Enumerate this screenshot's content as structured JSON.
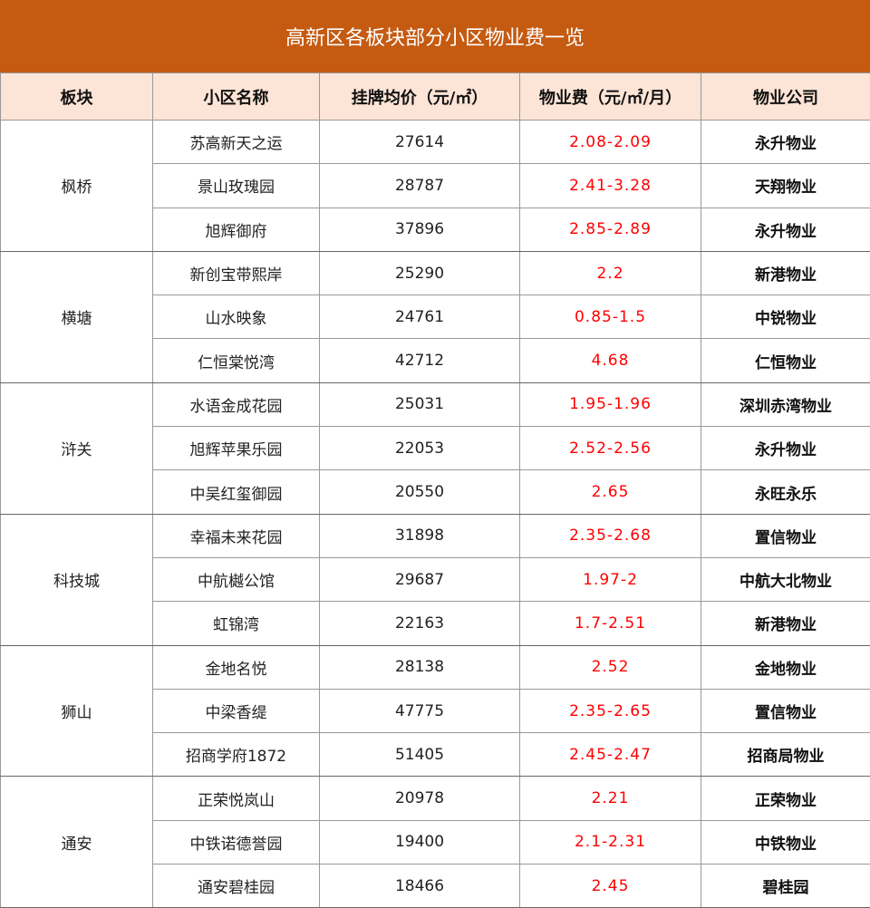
{
  "title": "高新区各板块部分小区物业费一览",
  "headers": [
    "板块",
    "小区名称",
    "挂牌均价（元/㎡）",
    "物业费（元/㎡/月）",
    "物业公司"
  ],
  "colors": {
    "title_bg": "#c55a11",
    "header_bg": "#fce4d6",
    "fee_text": "#ff0000"
  },
  "districts": [
    {
      "name": "枫桥",
      "rows": [
        {
          "name": "苏高新天之运",
          "price": "27614",
          "fee": "2.08-2.09",
          "company": "永升物业"
        },
        {
          "name": "景山玫瑰园",
          "price": "28787",
          "fee": "2.41-3.28",
          "company": "天翔物业"
        },
        {
          "name": "旭辉御府",
          "price": "37896",
          "fee": "2.85-2.89",
          "company": "永升物业"
        }
      ]
    },
    {
      "name": "横塘",
      "rows": [
        {
          "name": "新创宝带熙岸",
          "price": "25290",
          "fee": "2.2",
          "company": "新港物业"
        },
        {
          "name": "山水映象",
          "price": "24761",
          "fee": "0.85-1.5",
          "company": "中锐物业"
        },
        {
          "name": "仁恒棠悦湾",
          "price": "42712",
          "fee": "4.68",
          "company": "仁恒物业"
        }
      ]
    },
    {
      "name": "浒关",
      "rows": [
        {
          "name": "水语金成花园",
          "price": "25031",
          "fee": "1.95-1.96",
          "company": "深圳赤湾物业"
        },
        {
          "name": "旭辉苹果乐园",
          "price": "22053",
          "fee": "2.52-2.56",
          "company": "永升物业"
        },
        {
          "name": "中吴红玺御园",
          "price": "20550",
          "fee": "2.65",
          "company": "永旺永乐"
        }
      ]
    },
    {
      "name": "科技城",
      "rows": [
        {
          "name": "幸福未来花园",
          "price": "31898",
          "fee": "2.35-2.68",
          "company": "置信物业"
        },
        {
          "name": "中航樾公馆",
          "price": "29687",
          "fee": "1.97-2",
          "company": "中航大北物业"
        },
        {
          "name": "虹锦湾",
          "price": "22163",
          "fee": "1.7-2.51",
          "company": "新港物业"
        }
      ]
    },
    {
      "name": "狮山",
      "rows": [
        {
          "name": "金地名悦",
          "price": "28138",
          "fee": "2.52",
          "company": "金地物业"
        },
        {
          "name": "中梁香缇",
          "price": "47775",
          "fee": "2.35-2.65",
          "company": "置信物业"
        },
        {
          "name": "招商学府1872",
          "price": "51405",
          "fee": "2.45-2.47",
          "company": "招商局物业"
        }
      ]
    },
    {
      "name": "通安",
      "rows": [
        {
          "name": "正荣悦岚山",
          "price": "20978",
          "fee": "2.21",
          "company": "正荣物业"
        },
        {
          "name": "中铁诺德誉园",
          "price": "19400",
          "fee": "2.1-2.31",
          "company": "中铁物业"
        },
        {
          "name": "通安碧桂园",
          "price": "18466",
          "fee": "2.45",
          "company": "碧桂园"
        }
      ]
    }
  ]
}
